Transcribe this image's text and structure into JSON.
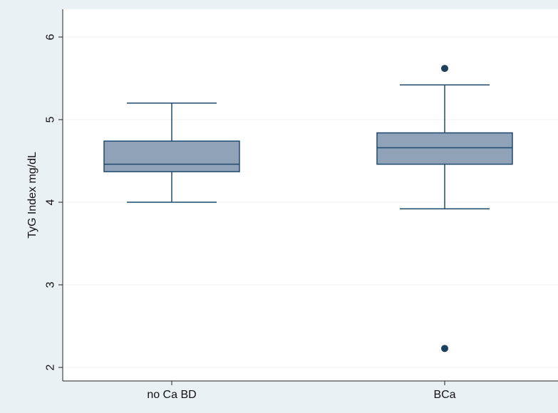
{
  "chart_data": {
    "type": "box",
    "title": "",
    "xlabel": "",
    "ylabel": "TyG Index mg/dL",
    "ylim": [
      1.85,
      6.25
    ],
    "yticks": [
      2,
      3,
      4,
      5,
      6
    ],
    "grid": true,
    "categories": [
      "no Ca BD",
      "BCa"
    ],
    "boxes": [
      {
        "category": "no Ca BD",
        "whisker_low": 4.0,
        "q1": 4.37,
        "median": 4.46,
        "q3": 4.74,
        "whisker_high": 5.2,
        "outliers": []
      },
      {
        "category": "BCa",
        "whisker_low": 3.92,
        "q1": 4.46,
        "median": 4.66,
        "q3": 4.84,
        "whisker_high": 5.42,
        "outliers": [
          5.62,
          2.23
        ]
      }
    ],
    "colors": {
      "box_fill": "#8fa2b8",
      "box_stroke": "#1f4a6e",
      "outlier": "#1c3f5f",
      "grid": "#eef1f3",
      "figure_bg": "#eaf1f5",
      "plot_bg": "#ffffff"
    }
  }
}
